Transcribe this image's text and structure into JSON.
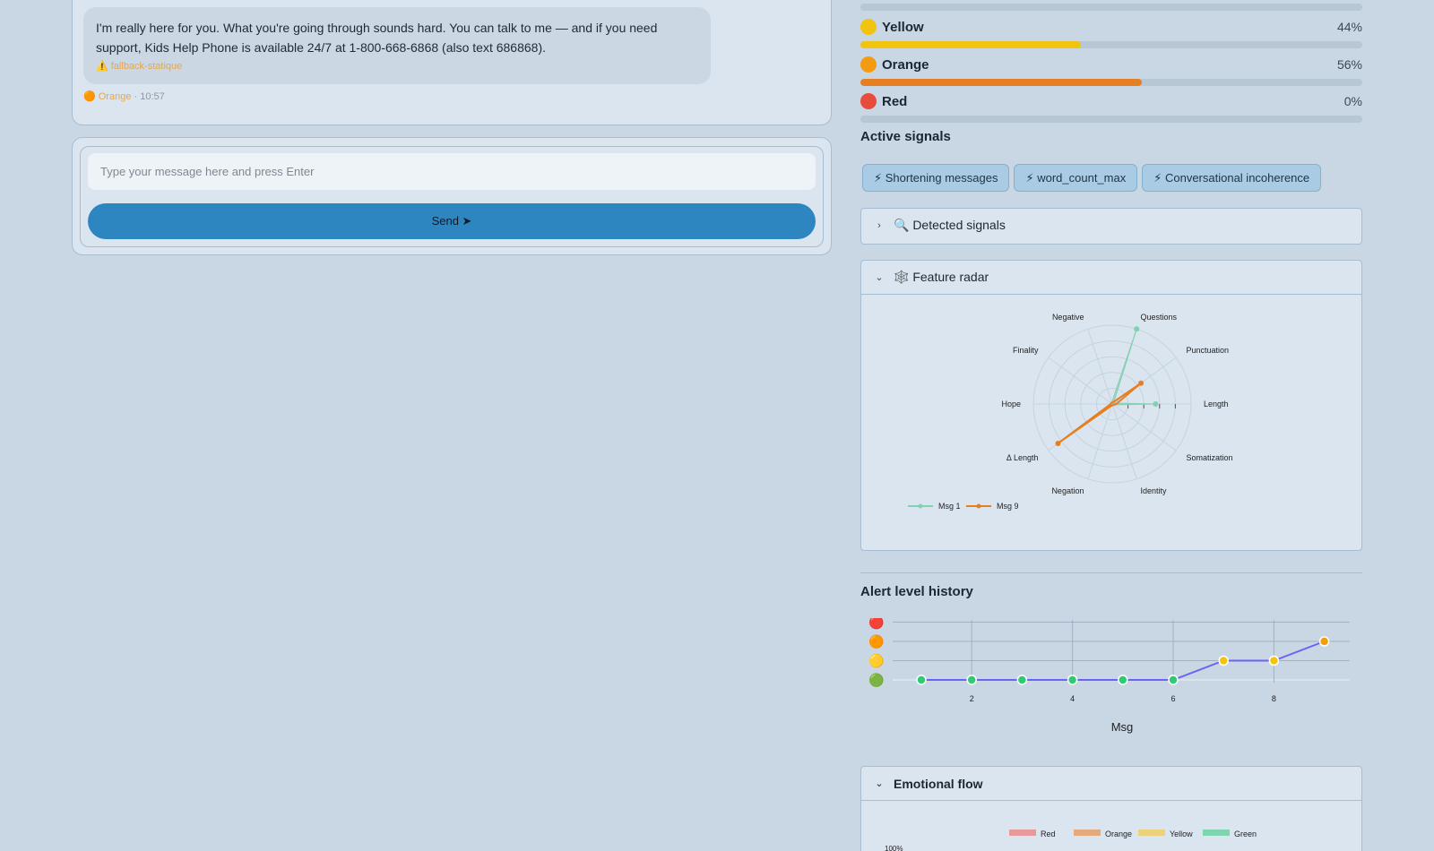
{
  "chat": {
    "bubble_text": "I'm really here for you. What you're going through sounds hard. You can talk to me — and if you need support, Kids Help Phone is available 24/7 at 1-800-668-6868 (also text 686868).",
    "fallback_tag": "⚠️ fallback-statique",
    "meta_level": "🟠 Orange",
    "meta_sep": "·",
    "meta_time": "10:57"
  },
  "composer": {
    "placeholder": "Type your message here and press Enter",
    "value": "",
    "send_label": "Send ➤"
  },
  "levels": [
    {
      "name": "Yellow",
      "pct_label": "44%",
      "value": 0.44,
      "color": "#f1c40f",
      "dot": "#f1c40f"
    },
    {
      "name": "Orange",
      "pct_label": "56%",
      "value": 0.56,
      "color": "#e67e22",
      "dot": "#f39c12"
    },
    {
      "name": "Red",
      "pct_label": "0%",
      "value": 0,
      "color": "#e74c3c",
      "dot": "#e74c3c"
    }
  ],
  "signals": {
    "title": "Active signals",
    "chips": [
      "⚡ Shortening messages",
      "⚡ word_count_max",
      "⚡ Conversational incoherence"
    ]
  },
  "detected": {
    "label": "🔍 Detected signals",
    "chevron": "›"
  },
  "radar": {
    "label": "🕸️ Feature radar",
    "chevron": "⌄",
    "axes": [
      "Length",
      "Punctuation",
      "Questions",
      "Negative",
      "Finality",
      "Hope",
      "Δ Length",
      "Negation",
      "Identity",
      "Somatization"
    ],
    "series": [
      {
        "name": "Msg 1",
        "color": "#7fd1b0",
        "values": [
          0.55,
          0.02,
          1.0,
          0.02,
          0.02,
          0.02,
          0.02,
          0.02,
          0.02,
          0.02
        ]
      },
      {
        "name": "Msg 9",
        "color": "#e67e22",
        "values": [
          0.05,
          0.45,
          0.02,
          0.02,
          0.02,
          0.02,
          0.85,
          0.02,
          0.02,
          0.02
        ]
      }
    ]
  },
  "history": {
    "title": "Alert level history",
    "xlabel": "Msg",
    "x_ticks": [
      2,
      4,
      6,
      8
    ],
    "levels_axis": [
      "🔴",
      "🟠",
      "🟡",
      "🟢"
    ],
    "points": [
      {
        "x": 1,
        "level": 0
      },
      {
        "x": 2,
        "level": 0
      },
      {
        "x": 3,
        "level": 0
      },
      {
        "x": 4,
        "level": 0
      },
      {
        "x": 5,
        "level": 0
      },
      {
        "x": 6,
        "level": 0
      },
      {
        "x": 7,
        "level": 1
      },
      {
        "x": 8,
        "level": 1
      },
      {
        "x": 9,
        "level": 2
      }
    ],
    "line_color": "#6c63f0",
    "level_colors": [
      "#2ecc71",
      "#f1c40f",
      "#f39c12",
      "#e74c3c"
    ]
  },
  "emotional": {
    "label": "Emotional flow",
    "chevron": "⌄",
    "legend": [
      {
        "name": "Red",
        "color": "#e89a9a"
      },
      {
        "name": "Orange",
        "color": "#e5aa7a"
      },
      {
        "name": "Yellow",
        "color": "#ecd27a"
      },
      {
        "name": "Green",
        "color": "#7fd6ae"
      }
    ],
    "y_top": "100%"
  }
}
